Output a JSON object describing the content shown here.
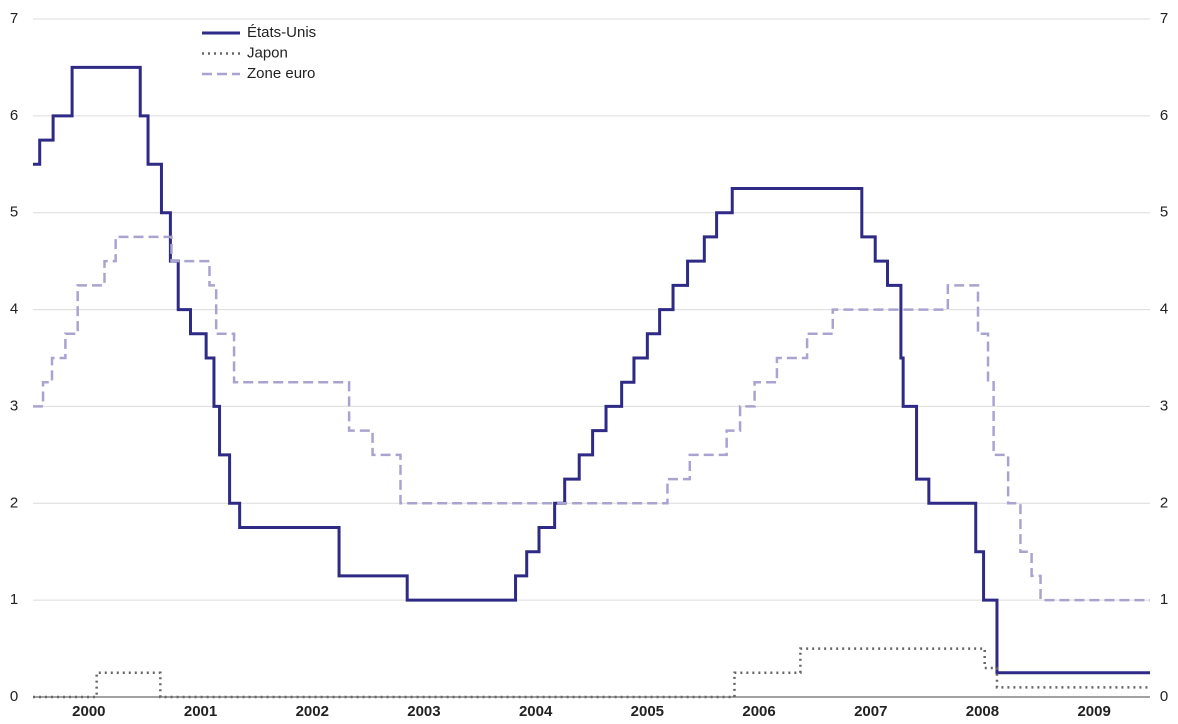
{
  "chart_data": {
    "type": "step-line",
    "xlim": [
      2000,
      2010
    ],
    "ylim": [
      0,
      7
    ],
    "yticks": [
      0,
      1,
      2,
      3,
      4,
      5,
      6,
      7
    ],
    "grid": true,
    "right_axis": true,
    "legend": "top-left",
    "xticks": [
      {
        "value": 2000.5,
        "label": "2000"
      },
      {
        "value": 2001.5,
        "label": "2001"
      },
      {
        "value": 2002.5,
        "label": "2002"
      },
      {
        "value": 2003.5,
        "label": "2003"
      },
      {
        "value": 2004.5,
        "label": "2004"
      },
      {
        "value": 2005.5,
        "label": "2005"
      },
      {
        "value": 2006.5,
        "label": "2006"
      },
      {
        "value": 2007.5,
        "label": "2007"
      },
      {
        "value": 2008.5,
        "label": "2008"
      },
      {
        "value": 2009.5,
        "label": "2009"
      }
    ],
    "series": [
      {
        "name": "États-Unis",
        "color": "#2e2a85",
        "dash": "solid",
        "x": [
          2000.0,
          2000.06,
          2000.18,
          2000.35,
          2000.96,
          2001.03,
          2001.15,
          2001.23,
          2001.3,
          2001.41,
          2001.55,
          2001.62,
          2001.67,
          2001.76,
          2001.85,
          2002.74,
          2003.35,
          2004.32,
          2004.42,
          2004.53,
          2004.67,
          2004.76,
          2004.89,
          2005.01,
          2005.13,
          2005.27,
          2005.38,
          2005.5,
          2005.61,
          2005.73,
          2005.86,
          2006.01,
          2006.12,
          2006.26,
          2007.42,
          2007.54,
          2007.65,
          2007.77,
          2007.79,
          2007.91,
          2008.02,
          2008.44,
          2008.51,
          2008.63,
          2010.0
        ],
        "values": [
          5.5,
          5.75,
          6.0,
          6.5,
          6.0,
          5.5,
          5.0,
          4.5,
          4.0,
          3.75,
          3.5,
          3.0,
          2.5,
          2.0,
          1.75,
          1.25,
          1.0,
          1.25,
          1.5,
          1.75,
          2.0,
          2.25,
          2.5,
          2.75,
          3.0,
          3.25,
          3.5,
          3.75,
          4.0,
          4.25,
          4.5,
          4.75,
          5.0,
          5.25,
          4.75,
          4.5,
          4.25,
          3.5,
          3.0,
          2.25,
          2.0,
          1.5,
          1.0,
          0.25,
          0.25
        ]
      },
      {
        "name": "Japon",
        "color": "#666666",
        "dash": "dotted",
        "x": [
          2000.0,
          2000.57,
          2001.14,
          2006.28,
          2006.87,
          2008.52,
          2008.63,
          2010.0
        ],
        "values": [
          0,
          0.25,
          0,
          0.25,
          0.5,
          0.3,
          0.1,
          0.1
        ]
      },
      {
        "name": "Zone euro",
        "color": "#a9a4cf",
        "dash": "dashed",
        "x": [
          2000.0,
          2000.09,
          2000.17,
          2000.29,
          2000.4,
          2000.64,
          2000.74,
          2001.24,
          2001.58,
          2001.64,
          2001.8,
          2002.83,
          2003.04,
          2003.29,
          2005.68,
          2005.88,
          2006.21,
          2006.33,
          2006.46,
          2006.66,
          2006.93,
          2007.16,
          2008.19,
          2008.46,
          2008.55,
          2008.6,
          2008.73,
          2008.84,
          2008.94,
          2009.02,
          2010.0
        ],
        "values": [
          3.0,
          3.25,
          3.5,
          3.75,
          4.25,
          4.5,
          4.75,
          4.5,
          4.25,
          3.75,
          3.25,
          2.75,
          2.5,
          2.0,
          2.25,
          2.5,
          2.75,
          3.0,
          3.25,
          3.5,
          3.75,
          4.0,
          4.25,
          3.75,
          3.25,
          2.5,
          2.0,
          1.5,
          1.25,
          1.0,
          1.0
        ]
      }
    ]
  }
}
